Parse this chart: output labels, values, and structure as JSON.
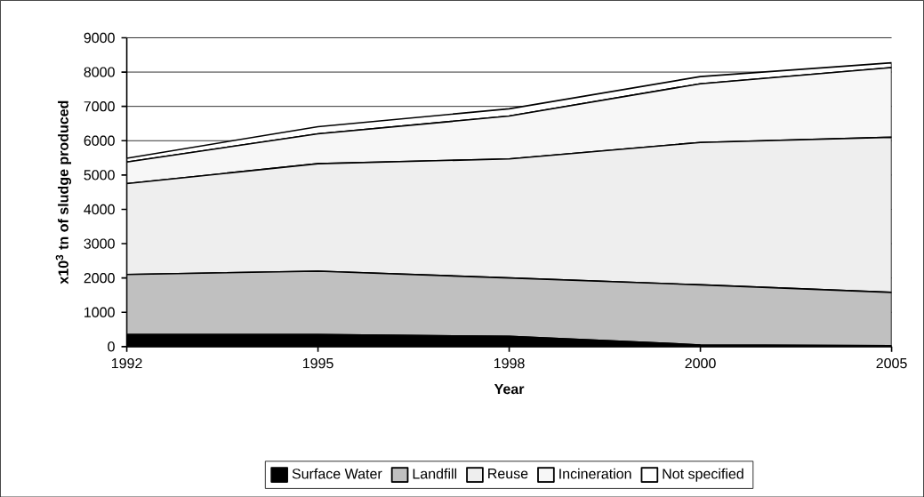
{
  "chart_data": {
    "type": "area",
    "stacked": true,
    "xlabel": "Year",
    "ylabel": "x10$^{3}$ tn of sludge produced",
    "categories": [
      "1992",
      "1995",
      "1998",
      "2000",
      "2005"
    ],
    "series": [
      {
        "name": "Surface Water",
        "color": "#000000",
        "values": [
          350,
          350,
          300,
          50,
          30
        ]
      },
      {
        "name": "Landfill",
        "color": "#c0c0c0",
        "values": [
          1750,
          1850,
          1700,
          1750,
          1550
        ]
      },
      {
        "name": "Reuse",
        "color": "#eeeeee",
        "values": [
          2650,
          3130,
          3470,
          4150,
          4520
        ]
      },
      {
        "name": "Incineration",
        "color": "#f7f7f7",
        "values": [
          630,
          870,
          1250,
          1710,
          2030
        ]
      },
      {
        "name": "Not specified",
        "color": "#ffffff",
        "values": [
          110,
          210,
          210,
          210,
          140
        ]
      }
    ],
    "ylim": [
      0,
      9000
    ],
    "yticks": [
      0,
      1000,
      2000,
      3000,
      4000,
      5000,
      6000,
      7000,
      8000,
      9000
    ],
    "grid": "y",
    "legend": "bottom"
  }
}
